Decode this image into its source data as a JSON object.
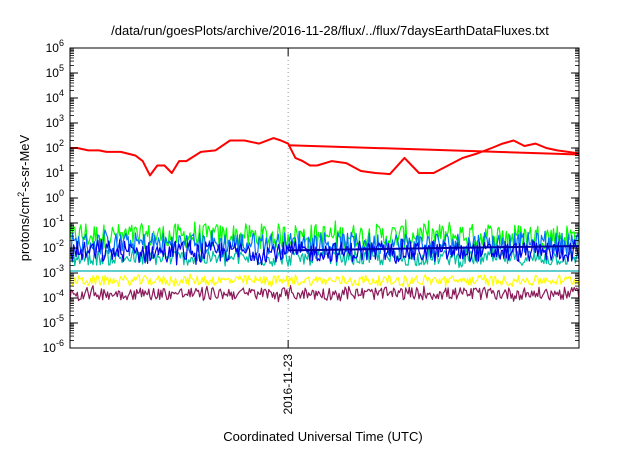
{
  "chart_data": {
    "type": "line",
    "title": "/data/run/goesPlots/archive/2016-11-28/flux/../flux/7daysEarthDataFluxes.txt",
    "xlabel": "Coordinated Universal Time (UTC)",
    "ylabel": {
      "prefix": "protons/cm",
      "sup": "2",
      "suffix": "-s-sr-MeV"
    },
    "xlim": [
      0,
      7
    ],
    "x_ticks": [
      {
        "x": 3.0,
        "label": "2016-11-23"
      }
    ],
    "yscale": "log",
    "ylim_exp": [
      -6,
      6
    ],
    "y_ticks": [
      {
        "base": "10",
        "exp": "-6"
      },
      {
        "base": "10",
        "exp": "-5"
      },
      {
        "base": "10",
        "exp": "-4"
      },
      {
        "base": "10",
        "exp": "-3"
      },
      {
        "base": "10",
        "exp": "-2"
      },
      {
        "base": "10",
        "exp": "-1"
      },
      {
        "base": "10",
        "exp": "0"
      },
      {
        "base": "10",
        "exp": "1"
      },
      {
        "base": "10",
        "exp": "2"
      },
      {
        "base": "10",
        "exp": "3"
      },
      {
        "base": "10",
        "exp": "4"
      },
      {
        "base": "10",
        "exp": "5"
      },
      {
        "base": "10",
        "exp": "6"
      }
    ],
    "grid": {
      "vertical_at_ticks": true,
      "style": "dotted"
    },
    "legend": "none",
    "series": [
      {
        "color": "#ff0000",
        "width": 2,
        "noise": 0,
        "x": [
          0.0,
          0.1,
          0.25,
          0.4,
          0.5,
          0.7,
          0.9,
          1.0,
          1.1,
          1.2,
          1.3,
          1.4,
          1.5,
          1.6,
          1.8,
          2.0,
          2.2,
          2.4,
          2.6,
          2.8,
          2.9,
          3.0,
          3.1,
          3.2,
          3.3,
          3.4,
          3.6,
          3.8,
          4.0,
          4.2,
          4.4,
          4.6,
          4.8,
          5.0,
          5.2,
          5.4,
          5.6,
          5.8,
          5.95,
          6.1,
          6.25,
          6.4,
          6.55,
          6.7,
          6.85,
          7.0
        ],
        "y": [
          100,
          100,
          80,
          80,
          70,
          70,
          50,
          30,
          8,
          20,
          20,
          10,
          30,
          30,
          70,
          80,
          200,
          200,
          150,
          250,
          200,
          150,
          40,
          30,
          20,
          20,
          30,
          25,
          12,
          10,
          9,
          40,
          10,
          10,
          20,
          40,
          60,
          100,
          150,
          200,
          120,
          150,
          100,
          80,
          70,
          60
        ]
      },
      {
        "color": "#ff0000",
        "width": 2,
        "noise": 0,
        "x": [
          3.0,
          7.0
        ],
        "y": [
          130,
          55
        ]
      },
      {
        "color": "#00ff00",
        "width": 1.2,
        "noise": 1.0,
        "x": [
          0.0,
          7.0
        ],
        "y": [
          0.03,
          0.03
        ]
      },
      {
        "color": "#0070ff",
        "width": 1.2,
        "noise": 0.9,
        "x": [
          0.0,
          7.0
        ],
        "y": [
          0.015,
          0.015
        ]
      },
      {
        "color": "#00c0a0",
        "width": 1.2,
        "noise": 0.6,
        "x": [
          0.0,
          7.0
        ],
        "y": [
          0.004,
          0.004
        ]
      },
      {
        "color": "#0000ee",
        "width": 1.2,
        "noise": 0.8,
        "x": [
          0.0,
          7.0
        ],
        "y": [
          0.007,
          0.007
        ]
      },
      {
        "color": "#ffff00",
        "width": 1.2,
        "noise": 0.4,
        "x": [
          0.0,
          7.0
        ],
        "y": [
          0.0005,
          0.0005
        ]
      },
      {
        "color": "#8b1a5a",
        "width": 1.2,
        "noise": 0.5,
        "x": [
          0.0,
          7.0
        ],
        "y": [
          0.00015,
          0.00015
        ]
      },
      {
        "color": "#0000aa",
        "width": 2,
        "noise": 0,
        "x": [
          3.0,
          7.0
        ],
        "y": [
          0.008,
          0.012
        ]
      },
      {
        "color": "#00b0b0",
        "width": 1.2,
        "noise": 0,
        "x": [
          0.0,
          7.0
        ],
        "y": [
          0.0012,
          0.0012
        ]
      }
    ]
  }
}
